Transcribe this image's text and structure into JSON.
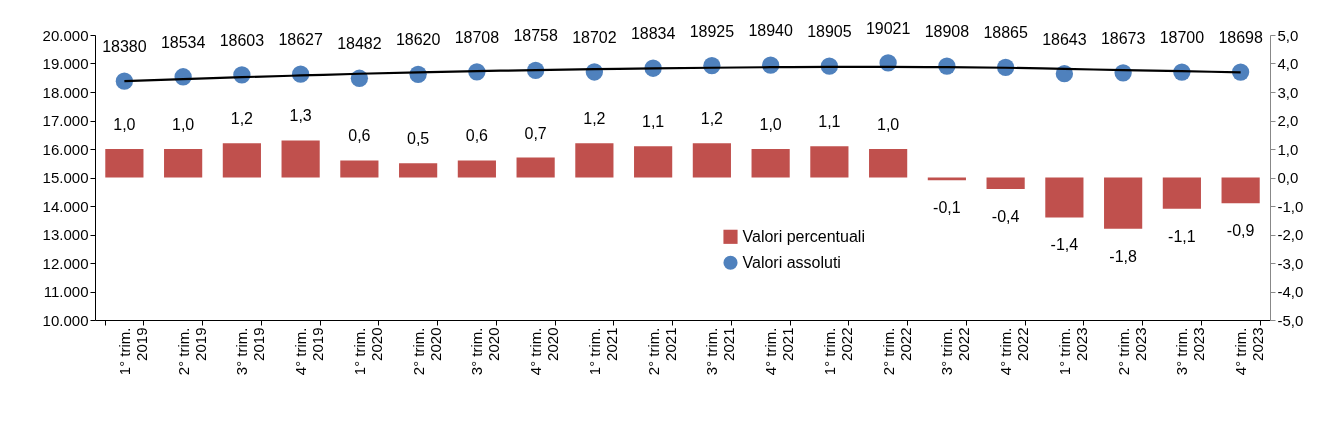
{
  "chart_data": {
    "type": "bar",
    "categories": [
      "1° trim. 2019",
      "2° trim. 2019",
      "3° trim. 2019",
      "4° trim. 2019",
      "1° trim. 2020",
      "2° trim. 2020",
      "3° trim. 2020",
      "4° trim. 2020",
      "1° trim. 2021",
      "2° trim. 2021",
      "3° trim. 2021",
      "4° trim. 2021",
      "1° trim. 2022",
      "2° trim. 2022",
      "3° trim. 2022",
      "4° trim. 2022",
      "1° trim. 2023",
      "2° trim. 2023",
      "3° trim. 2023",
      "4° trim. 2023"
    ],
    "series": [
      {
        "name": "Valori percentuali",
        "type": "bar",
        "axis": "y2",
        "color": "#c0504d",
        "values": [
          1.0,
          1.0,
          1.2,
          1.3,
          0.6,
          0.5,
          0.6,
          0.7,
          1.2,
          1.1,
          1.2,
          1.0,
          1.1,
          1.0,
          -0.1,
          -0.4,
          -1.4,
          -1.8,
          -1.1,
          -0.9
        ],
        "value_labels": [
          "1,0",
          "1,0",
          "1,2",
          "1,3",
          "0,6",
          "0,5",
          "0,6",
          "0,7",
          "1,2",
          "1,1",
          "1,2",
          "1,0",
          "1,1",
          "1,0",
          "-0,1",
          "-0,4",
          "-1,4",
          "-1,8",
          "-1,1",
          "-0,9"
        ]
      },
      {
        "name": "Valori assoluti",
        "type": "scatter",
        "marker": "circle",
        "color": "#4f81bd",
        "values": [
          18380,
          18534,
          18603,
          18627,
          18482,
          18620,
          18708,
          18758,
          18702,
          18834,
          18925,
          18940,
          18905,
          19021,
          18908,
          18865,
          18643,
          18673,
          18700,
          18698
        ],
        "value_labels": [
          "18380",
          "18534",
          "18603",
          "18627",
          "18482",
          "18620",
          "18708",
          "18758",
          "18702",
          "18834",
          "18925",
          "18940",
          "18905",
          "19021",
          "18908",
          "18865",
          "18643",
          "18673",
          "18700",
          "18698"
        ]
      },
      {
        "type": "line",
        "color": "#000000",
        "values": [
          18380,
          18450,
          18520,
          18580,
          18640,
          18690,
          18730,
          18770,
          18800,
          18830,
          18850,
          18870,
          18880,
          18880,
          18870,
          18850,
          18810,
          18770,
          18730,
          18690
        ]
      }
    ],
    "ylim": [
      10000,
      20000
    ],
    "yticks": [
      {
        "value": 10000,
        "label": "10.000"
      },
      {
        "value": 11000,
        "label": "11.000"
      },
      {
        "value": 12000,
        "label": "12.000"
      },
      {
        "value": 13000,
        "label": "13.000"
      },
      {
        "value": 14000,
        "label": "14.000"
      },
      {
        "value": 15000,
        "label": "15.000"
      },
      {
        "value": 16000,
        "label": "16.000"
      },
      {
        "value": 17000,
        "label": "17.000"
      },
      {
        "value": 18000,
        "label": "18.000"
      },
      {
        "value": 19000,
        "label": "19.000"
      },
      {
        "value": 20000,
        "label": "20.000"
      }
    ],
    "y2lim": [
      -5,
      5
    ],
    "y2ticks": [
      {
        "value": -5,
        "label": "-5,0"
      },
      {
        "value": -4,
        "label": "-4,0"
      },
      {
        "value": -3,
        "label": "-3,0"
      },
      {
        "value": -2,
        "label": "-2,0"
      },
      {
        "value": -1,
        "label": "-1,0"
      },
      {
        "value": 0,
        "label": "0,0"
      },
      {
        "value": 1,
        "label": "1,0"
      },
      {
        "value": 2,
        "label": "2,0"
      },
      {
        "value": 3,
        "label": "3,0"
      },
      {
        "value": 4,
        "label": "4,0"
      },
      {
        "value": 5,
        "label": "5,0"
      }
    ],
    "legend": "bottom"
  }
}
